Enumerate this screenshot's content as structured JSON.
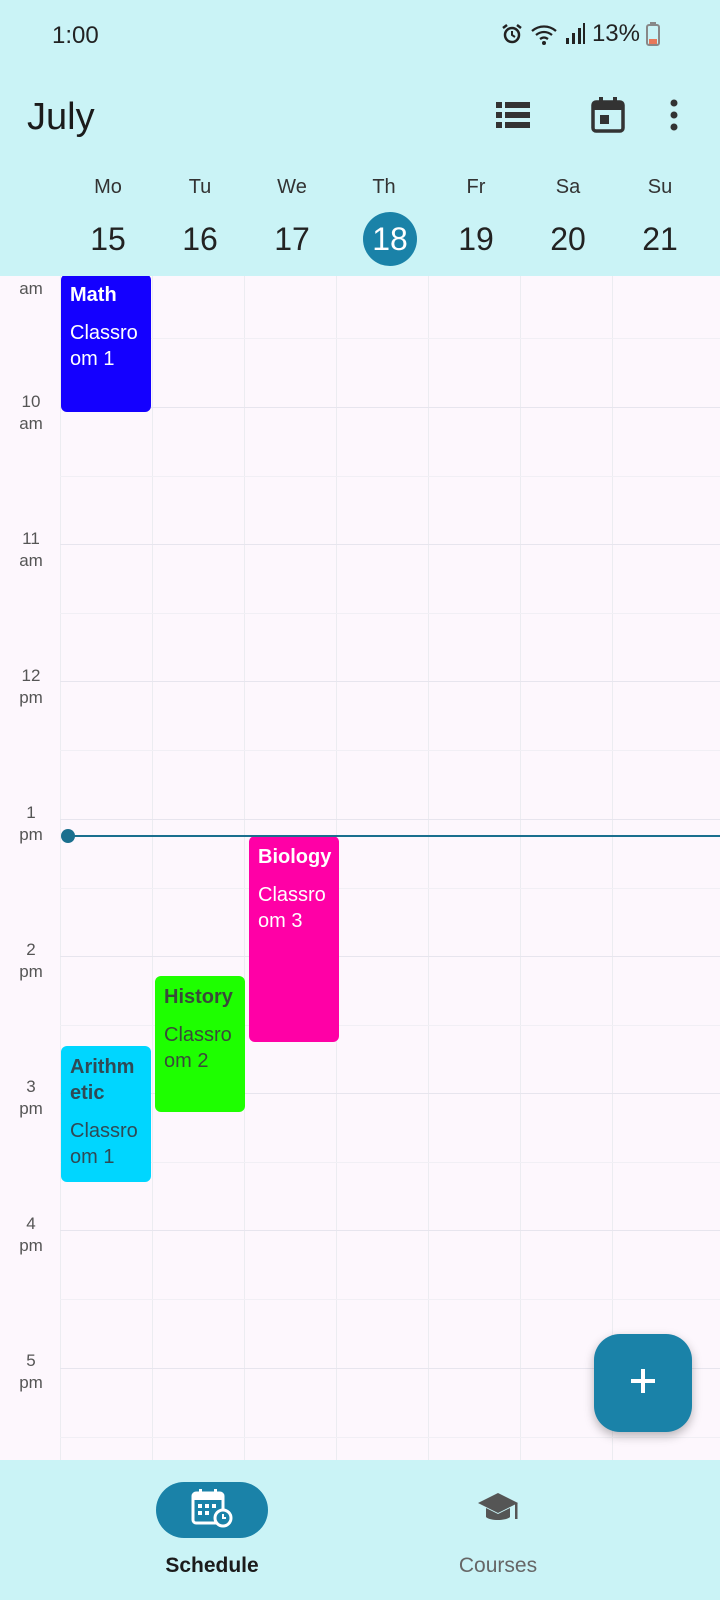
{
  "status_bar": {
    "time": "1:00",
    "battery": "13%"
  },
  "header": {
    "month": "July"
  },
  "toolbar": {
    "icons": [
      "list-view-icon",
      "calendar-today-icon",
      "more-vert-icon"
    ]
  },
  "week": {
    "days": [
      {
        "abbr": "Mo",
        "num": "15"
      },
      {
        "abbr": "Tu",
        "num": "16"
      },
      {
        "abbr": "We",
        "num": "17"
      },
      {
        "abbr": "Th",
        "num": "18"
      },
      {
        "abbr": "Fr",
        "num": "19"
      },
      {
        "abbr": "Sa",
        "num": "20"
      },
      {
        "abbr": "Su",
        "num": "21"
      }
    ],
    "today_index": 3
  },
  "time_labels": [
    {
      "hour": "",
      "period": "am"
    },
    {
      "hour": "10",
      "period": "am"
    },
    {
      "hour": "11",
      "period": "am"
    },
    {
      "hour": "12",
      "period": "pm"
    },
    {
      "hour": "1",
      "period": "pm"
    },
    {
      "hour": "2",
      "period": "pm"
    },
    {
      "hour": "3",
      "period": "pm"
    },
    {
      "hour": "4",
      "period": "pm"
    },
    {
      "hour": "5",
      "period": "pm"
    }
  ],
  "events": [
    {
      "title": "Math",
      "room": "Classroom 1",
      "day": "Mo",
      "color": "#1400ff",
      "text_color": "#ffffff"
    },
    {
      "title": "Biology",
      "room": "Classroom 3",
      "day": "We",
      "color": "#ff00a6",
      "text_color": "#ffffff"
    },
    {
      "title": "History",
      "room": "Classroom 2",
      "day": "Tu",
      "color": "#1eff00",
      "text_color": "#3a4a3a"
    },
    {
      "title": "Arithmetic",
      "room": "Classroom 1",
      "day": "Mo",
      "color": "#00d6ff",
      "text_color": "#2f4a55"
    }
  ],
  "fab": {
    "icon": "plus-icon"
  },
  "bottom_nav": {
    "items": [
      {
        "label": "Schedule",
        "icon": "schedule-calendar-icon",
        "active": true
      },
      {
        "label": "Courses",
        "icon": "graduation-cap-icon",
        "active": false
      }
    ]
  },
  "colors": {
    "accent": "#1a82a8",
    "header_bg": "#caf3f6",
    "grid_bg": "#fdf7fd"
  }
}
